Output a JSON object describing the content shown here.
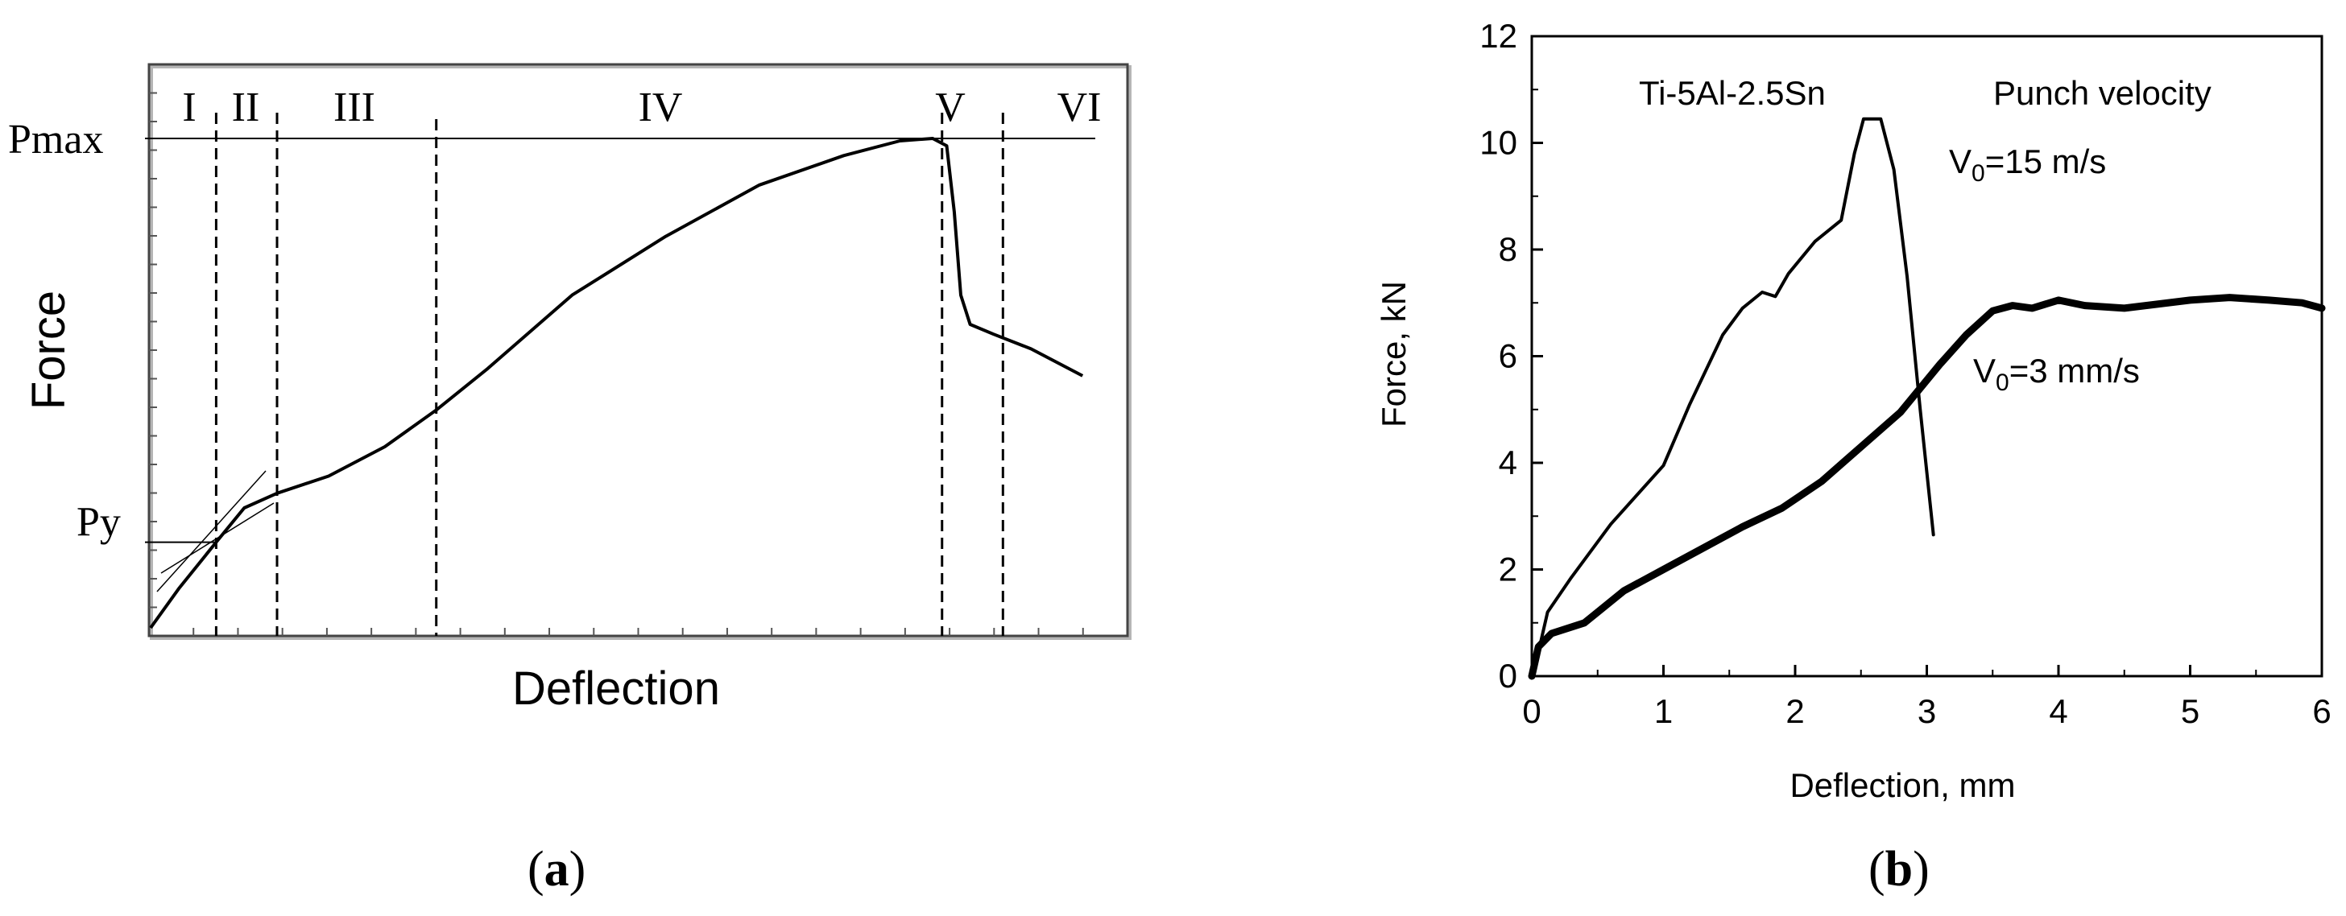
{
  "chart_data": [
    {
      "panel_label": "a",
      "type": "line",
      "xlabel": "Deflection",
      "ylabel": "Force",
      "y_markers": [
        "Pmax",
        "Py"
      ],
      "regions": [
        "I",
        "II",
        "III",
        "IV",
        "V",
        "VI"
      ],
      "region_boundaries": [
        0.07,
        0.135,
        0.305,
        0.845,
        0.91
      ],
      "curve": {
        "x": [
          0.0,
          0.03,
          0.07,
          0.1,
          0.135,
          0.19,
          0.25,
          0.305,
          0.36,
          0.45,
          0.55,
          0.65,
          0.74,
          0.8,
          0.835,
          0.85,
          0.858,
          0.865,
          0.875,
          0.9,
          0.94,
          0.995
        ],
        "y": [
          0.0,
          0.08,
          0.175,
          0.245,
          0.275,
          0.31,
          0.37,
          0.445,
          0.53,
          0.68,
          0.8,
          0.905,
          0.965,
          0.995,
          1.0,
          0.985,
          0.85,
          0.68,
          0.62,
          0.6,
          0.57,
          0.515
        ]
      },
      "tangent_lines": true
    },
    {
      "panel_label": "b",
      "type": "line",
      "xlabel": "Deflection, mm",
      "ylabel": "Force, kN",
      "xlim": [
        0,
        6
      ],
      "ylim": [
        0,
        12
      ],
      "x_ticks": [
        "0",
        "1",
        "2",
        "3",
        "4",
        "5",
        "6"
      ],
      "y_ticks": [
        "0",
        "2",
        "4",
        "6",
        "8",
        "10",
        "12"
      ],
      "annotations": [
        "Ti-5Al-2.5Sn",
        "Punch velocity"
      ],
      "series": [
        {
          "name": "V0=15 m/s",
          "name_main": "V",
          "name_sub": "0",
          "name_rest": "=15 m/s",
          "x": [
            0.0,
            0.05,
            0.12,
            0.3,
            0.6,
            1.0,
            1.2,
            1.45,
            1.6,
            1.75,
            1.85,
            1.95,
            2.15,
            2.35,
            2.45,
            2.52,
            2.65,
            2.75,
            2.85,
            2.95,
            3.05
          ],
          "y": [
            0.0,
            0.45,
            1.2,
            1.85,
            2.85,
            3.95,
            5.1,
            6.4,
            6.9,
            7.2,
            7.12,
            7.55,
            8.15,
            8.55,
            9.8,
            10.45,
            10.45,
            9.5,
            7.5,
            5.0,
            2.65
          ]
        },
        {
          "name": "V0=3 mm/s",
          "name_main": "V",
          "name_sub": "0",
          "name_rest": "=3 mm/s",
          "x": [
            0.0,
            0.05,
            0.15,
            0.4,
            0.7,
            1.0,
            1.3,
            1.6,
            1.9,
            2.2,
            2.5,
            2.8,
            3.1,
            3.3,
            3.5,
            3.65,
            3.8,
            4.0,
            4.2,
            4.5,
            5.0,
            5.3,
            5.6,
            5.85,
            6.0
          ],
          "y": [
            0.0,
            0.55,
            0.8,
            1.0,
            1.6,
            2.0,
            2.4,
            2.8,
            3.15,
            3.65,
            4.3,
            4.95,
            5.85,
            6.4,
            6.85,
            6.95,
            6.9,
            7.05,
            6.95,
            6.9,
            7.05,
            7.1,
            7.05,
            7.0,
            6.9
          ]
        }
      ]
    }
  ],
  "captions": [
    "a",
    "b"
  ]
}
